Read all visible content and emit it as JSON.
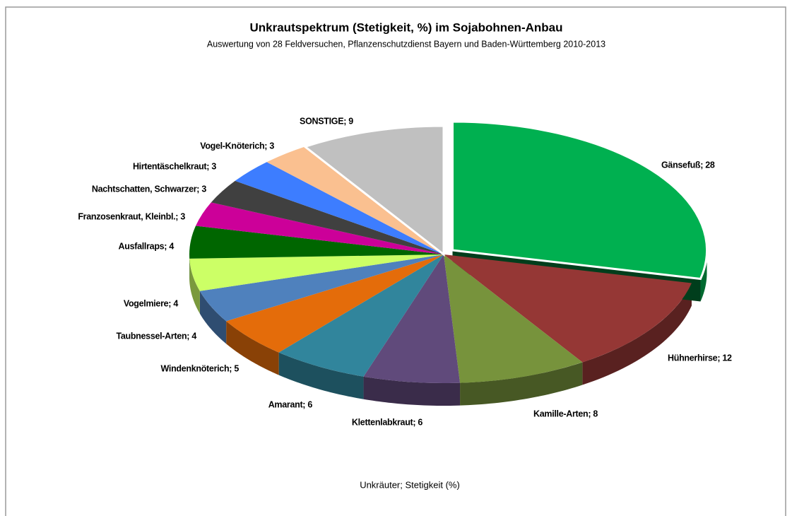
{
  "chart_data": {
    "type": "pie3d",
    "title": "Unkrautspektrum (Stetigkeit, %) im Sojabohnen-Anbau",
    "subtitle": "Auswertung von 28 Feldversuchen, Pflanzenschutzdienst Bayern und Baden-Württemberg 2010-2013",
    "caption": "Unkräuter; Stetigkeit (%)",
    "values": [
      28,
      12,
      8,
      6,
      6,
      5,
      4,
      4,
      4,
      3,
      3,
      3,
      3,
      9
    ],
    "value_labels": [
      "Gänsefuß; 28",
      "Hühnerhirse; 12",
      "Kamille-Arten; 8",
      "Klettenlabkraut; 6",
      "Amarant; 6",
      "Windenknöterich; 5",
      "Taubnessel-Arten; 4",
      "Vogelmiere; 4",
      "Ausfallraps; 4",
      "Franzosenkraut, Kleinbl.; 3",
      "Nachtschatten, Schwarzer; 3",
      "Hirtentäschelkraut; 3",
      "Vogel-Knöterich; 3",
      "SONSTIGE; 9"
    ],
    "colors": [
      "#00b050",
      "#953735",
      "#77933c",
      "#604a7b",
      "#31859c",
      "#e46c0a",
      "#4f81bd",
      "#ccff66",
      "#006600",
      "#cc0099",
      "#404040",
      "#3d7dff",
      "#fac090",
      "#c0c0c0"
    ]
  }
}
